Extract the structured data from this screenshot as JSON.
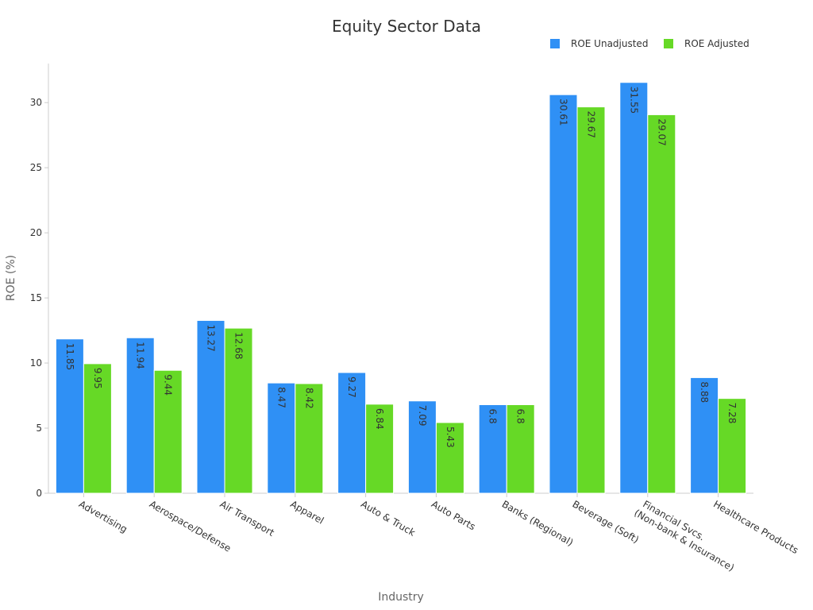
{
  "chart_data": {
    "type": "bar",
    "title": "Equity Sector Data",
    "xlabel": "Industry",
    "ylabel": "ROE (%)",
    "ylim": [
      0,
      33
    ],
    "yticks": [
      0,
      5,
      10,
      15,
      20,
      25,
      30
    ],
    "grid": false,
    "legend_position": "top-right",
    "categories": [
      "Advertising",
      "Aerospace/Defense",
      "Air Transport",
      "Apparel",
      "Auto & Truck",
      "Auto Parts",
      "Banks (Regional)",
      "Beverage (Soft)",
      "Financial Svcs.\n(Non-bank & Insurance)",
      "Healthcare Products"
    ],
    "series": [
      {
        "name": "ROE Unadjusted",
        "color": "#2f90f5",
        "values": [
          11.85,
          11.94,
          13.27,
          8.47,
          9.27,
          7.09,
          6.8,
          30.61,
          31.55,
          8.88
        ],
        "labels": [
          "11.85",
          "11.94",
          "13.27",
          "8.47",
          "9.27",
          "7.09",
          "6.8",
          "30.61",
          "31.55",
          "8.88"
        ]
      },
      {
        "name": "ROE Adjusted",
        "color": "#66d926",
        "values": [
          9.95,
          9.44,
          12.68,
          8.42,
          6.84,
          5.43,
          6.8,
          29.67,
          29.07,
          7.28
        ],
        "labels": [
          "9.95",
          "9.44",
          "12.68",
          "8.42",
          "6.84",
          "5.43",
          "6.8",
          "29.67",
          "29.07",
          "7.28"
        ]
      }
    ]
  }
}
